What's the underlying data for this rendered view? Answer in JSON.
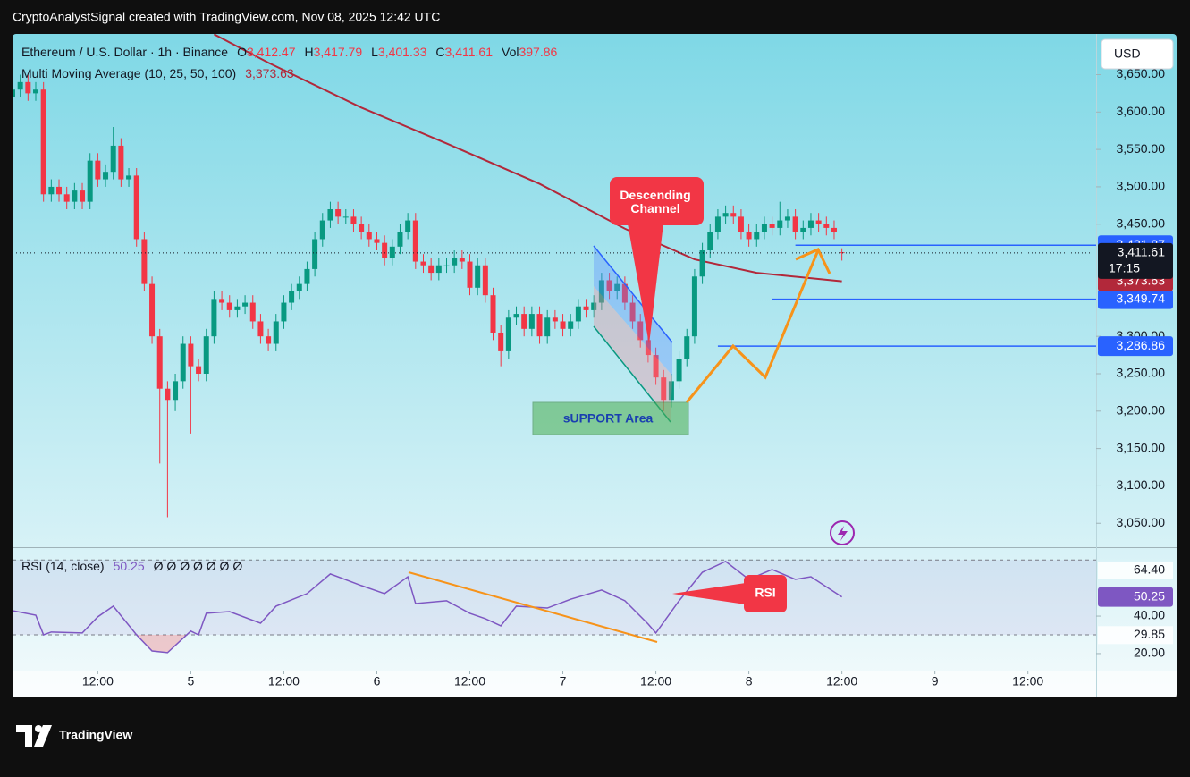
{
  "header": {
    "attribution": "CryptoAnalystSignal created with TradingView.com, Nov 08, 2025 12:42 UTC",
    "brand": "TradingView",
    "currency": "USD"
  },
  "chart_data": [
    {
      "type": "candlestick",
      "title": "Ethereum / U.S. Dollar · 1h · Binance",
      "ohlc_legend": [
        {
          "key": "O",
          "text": "3,412.47"
        },
        {
          "key": "H",
          "text": "3,417.79"
        },
        {
          "key": "L",
          "text": "3,401.33"
        },
        {
          "key": "C",
          "text": "3,411.61"
        },
        {
          "key": "Vol",
          "text": "397.86"
        }
      ],
      "up_color": "#089981",
      "down_color": "#f23645",
      "open": [
        3620,
        3630,
        3640,
        3625,
        3630,
        3490,
        3500,
        3490,
        3480,
        3495,
        3480,
        3535,
        3510,
        3520,
        3555,
        3510,
        3515,
        3430,
        3370,
        3300,
        3230,
        3215,
        3240,
        3290,
        3260,
        3250,
        3300,
        3350,
        3345,
        3335,
        3340,
        3345,
        3320,
        3300,
        3290,
        3320,
        3345,
        3360,
        3370,
        3390,
        3430,
        3455,
        3470,
        3460,
        3460,
        3450,
        3440,
        3430,
        3425,
        3405,
        3420,
        3440,
        3455,
        3400,
        3395,
        3385,
        3395,
        3395,
        3405,
        3400,
        3365,
        3395,
        3355,
        3305,
        3280,
        3325,
        3330,
        3310,
        3330,
        3300,
        3325,
        3320,
        3310,
        3320,
        3340,
        3335,
        3345,
        3375,
        3360,
        3370,
        3345,
        3320,
        3295,
        3275,
        3245,
        3215,
        3240,
        3270,
        3300,
        3380,
        3415,
        3440,
        3460,
        3465,
        3460,
        3440,
        3430,
        3440,
        3450,
        3445,
        3455,
        3460,
        3440,
        3445,
        3455,
        3450,
        3445,
        3412.47
      ],
      "high": [
        3640,
        3650,
        3650,
        3640,
        3640,
        3510,
        3510,
        3500,
        3505,
        3505,
        3545,
        3545,
        3530,
        3580,
        3565,
        3525,
        3525,
        3440,
        3380,
        3310,
        3240,
        3250,
        3300,
        3300,
        3270,
        3310,
        3360,
        3360,
        3355,
        3350,
        3355,
        3355,
        3330,
        3310,
        3330,
        3355,
        3370,
        3380,
        3400,
        3440,
        3465,
        3480,
        3480,
        3470,
        3470,
        3460,
        3450,
        3440,
        3435,
        3430,
        3450,
        3465,
        3465,
        3410,
        3405,
        3405,
        3405,
        3415,
        3415,
        3410,
        3405,
        3405,
        3365,
        3315,
        3335,
        3340,
        3340,
        3340,
        3340,
        3335,
        3335,
        3330,
        3330,
        3350,
        3350,
        3355,
        3385,
        3385,
        3380,
        3380,
        3355,
        3330,
        3305,
        3285,
        3255,
        3250,
        3280,
        3310,
        3390,
        3425,
        3450,
        3470,
        3475,
        3475,
        3470,
        3450,
        3450,
        3460,
        3460,
        3480,
        3470,
        3470,
        3455,
        3465,
        3465,
        3460,
        3455,
        3417.79
      ],
      "low": [
        3610,
        3620,
        3615,
        3615,
        3480,
        3480,
        3480,
        3470,
        3470,
        3470,
        3470,
        3500,
        3500,
        3510,
        3500,
        3500,
        3420,
        3360,
        3290,
        3130,
        3058,
        3200,
        3230,
        3170,
        3240,
        3240,
        3290,
        3335,
        3325,
        3325,
        3330,
        3310,
        3290,
        3280,
        3280,
        3310,
        3335,
        3350,
        3360,
        3380,
        3420,
        3445,
        3450,
        3450,
        3440,
        3430,
        3420,
        3415,
        3395,
        3395,
        3410,
        3430,
        3390,
        3385,
        3375,
        3375,
        3385,
        3385,
        3390,
        3355,
        3355,
        3345,
        3295,
        3260,
        3270,
        3315,
        3300,
        3300,
        3290,
        3290,
        3310,
        3300,
        3300,
        3310,
        3325,
        3325,
        3335,
        3350,
        3350,
        3335,
        3310,
        3285,
        3265,
        3235,
        3200,
        3205,
        3230,
        3260,
        3290,
        3370,
        3405,
        3430,
        3450,
        3450,
        3430,
        3420,
        3420,
        3430,
        3435,
        3435,
        3445,
        3430,
        3430,
        3435,
        3440,
        3435,
        3430,
        3401.33
      ],
      "close": [
        3630,
        3640,
        3625,
        3630,
        3490,
        3500,
        3490,
        3480,
        3495,
        3480,
        3535,
        3510,
        3520,
        3555,
        3510,
        3515,
        3430,
        3370,
        3300,
        3230,
        3215,
        3240,
        3290,
        3260,
        3250,
        3300,
        3350,
        3345,
        3335,
        3340,
        3345,
        3320,
        3300,
        3290,
        3320,
        3345,
        3360,
        3370,
        3390,
        3430,
        3455,
        3470,
        3460,
        3460,
        3450,
        3440,
        3430,
        3425,
        3405,
        3420,
        3440,
        3455,
        3400,
        3395,
        3385,
        3395,
        3395,
        3405,
        3400,
        3365,
        3395,
        3355,
        3305,
        3280,
        3325,
        3330,
        3310,
        3330,
        3300,
        3325,
        3320,
        3310,
        3320,
        3340,
        3335,
        3345,
        3375,
        3360,
        3370,
        3345,
        3320,
        3295,
        3275,
        3245,
        3215,
        3240,
        3270,
        3300,
        3380,
        3415,
        3440,
        3460,
        3465,
        3460,
        3440,
        3430,
        3440,
        3450,
        3445,
        3455,
        3460,
        3440,
        3445,
        3455,
        3450,
        3445,
        3440,
        3411.61
      ],
      "last": {
        "label": "3,411.61",
        "countdown": "17:15"
      },
      "xlim": [
        0,
        139.8
      ],
      "xticks": [
        {
          "value": 11,
          "label": "12:00"
        },
        {
          "value": 23,
          "label": "5"
        },
        {
          "value": 35,
          "label": "12:00"
        },
        {
          "value": 47,
          "label": "6"
        },
        {
          "value": 59,
          "label": "12:00"
        },
        {
          "value": 71,
          "label": "7"
        },
        {
          "value": 83,
          "label": "12:00"
        },
        {
          "value": 95,
          "label": "8"
        },
        {
          "value": 107,
          "label": "12:00"
        },
        {
          "value": 119,
          "label": "9"
        },
        {
          "value": 131,
          "label": "12:00"
        }
      ],
      "ylim": [
        3018,
        3702
      ],
      "yticks": [
        {
          "value": 3050,
          "label": "3,050.00"
        },
        {
          "value": 3100,
          "label": "3,100.00"
        },
        {
          "value": 3150,
          "label": "3,150.00"
        },
        {
          "value": 3200,
          "label": "3,200.00"
        },
        {
          "value": 3250,
          "label": "3,250.00"
        },
        {
          "value": 3300,
          "label": "3,300.00"
        },
        {
          "value": 3450,
          "label": "3,450.00"
        },
        {
          "value": 3500,
          "label": "3,500.00"
        },
        {
          "value": 3550,
          "label": "3,550.00"
        },
        {
          "value": 3600,
          "label": "3,600.00"
        },
        {
          "value": 3650,
          "label": "3,650.00"
        }
      ],
      "grid": false,
      "ma": {
        "name": "Multi Moving Average (10, 25, 50, 100)",
        "value_label": "3,373.63",
        "color": "#b2283a",
        "x": [
          26,
          33,
          45,
          56,
          68,
          79,
          88,
          96,
          107
        ],
        "values": [
          3704,
          3666,
          3606,
          3558,
          3504,
          3444,
          3403,
          3385,
          3373.63
        ]
      },
      "levels": [
        {
          "value": 3421.87,
          "label": "3,421.87",
          "x_start": 101,
          "color": "#2962ff"
        },
        {
          "value": 3349.74,
          "label": "3,349.74",
          "x_start": 98,
          "color": "#2962ff"
        },
        {
          "value": 3286.86,
          "label": "3,286.86",
          "x_start": 91,
          "color": "#2962ff"
        }
      ],
      "annotations": {
        "channel": [
          "Descending",
          "Channel"
        ],
        "support": "sUPPORT Area"
      }
    },
    {
      "type": "line",
      "title": "RSI (14, close)",
      "value_label": "50.25",
      "extra": "Ø Ø Ø Ø Ø Ø Ø",
      "color": "#7e57c2",
      "x": [
        0,
        3,
        4,
        5,
        9,
        11,
        13,
        16,
        18,
        20,
        23,
        24,
        25,
        28,
        32,
        34,
        38,
        41,
        45,
        48,
        51,
        52,
        56,
        59,
        61,
        63,
        65,
        69,
        72,
        76,
        79,
        82,
        83,
        86,
        89,
        92,
        95,
        98,
        101,
        103,
        107
      ],
      "values": [
        42.9,
        40.5,
        30,
        31.5,
        31,
        39.6,
        45.3,
        30,
        21.4,
        20.5,
        32,
        30,
        41.5,
        42.4,
        36.2,
        45.3,
        52,
        62.5,
        56.3,
        52,
        61,
        46.7,
        48.2,
        41.5,
        38.6,
        34.8,
        45.3,
        44.3,
        49,
        53.9,
        48.2,
        35.8,
        31,
        48.2,
        63.4,
        69.2,
        59.6,
        64.9,
        59.6,
        61,
        50.25
      ],
      "ylim": [
        10.9,
        76.3
      ],
      "yticks": [
        {
          "value": 20,
          "label": "20.00"
        },
        {
          "value": 40,
          "label": "40.00"
        }
      ],
      "bands": [
        70,
        30
      ],
      "level_labels": [
        {
          "value": 64.4,
          "label": "64.40"
        },
        {
          "value": 29.85,
          "label": "29.85"
        }
      ],
      "annotation": "RSI"
    }
  ]
}
